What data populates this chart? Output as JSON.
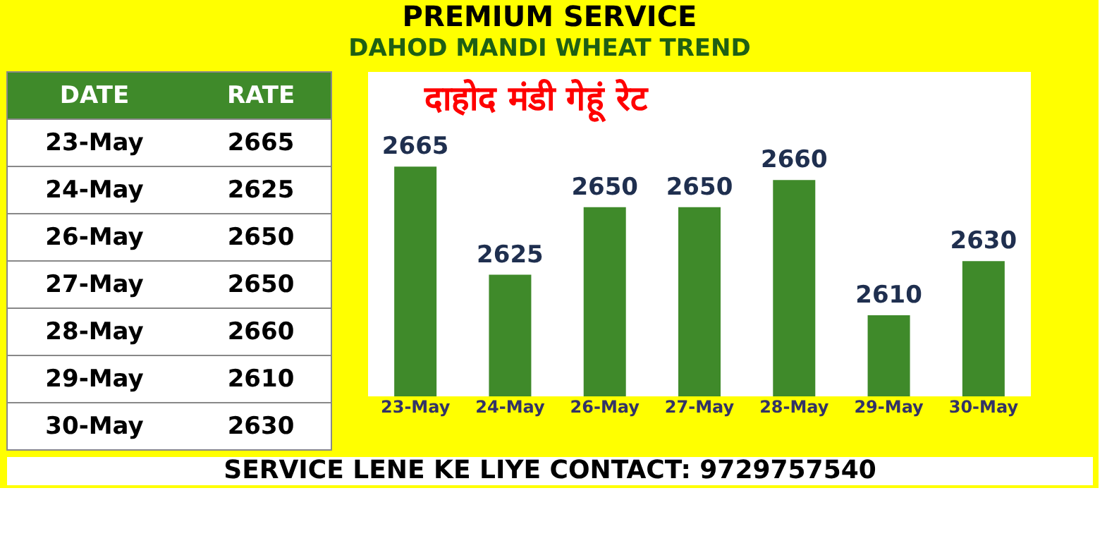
{
  "chart_data": [
    {
      "type": "other",
      "categories": [
        "23-May",
        "24-May",
        "26-May",
        "27-May",
        "28-May",
        "29-May",
        "30-May"
      ],
      "values": [
        2665,
        2625,
        2650,
        2650,
        2660,
        2610,
        2630
      ],
      "data_labels": true,
      "xlabel": "DATE",
      "ylabel": "RATE"
    },
    {
      "type": "bar",
      "title": "PREMIUM SERVICE",
      "subtitle": "DAHOD MANDI WHEAT TREND",
      "categories": [
        "23-May",
        "24-May",
        "26-May",
        "27-May",
        "28-May",
        "29-May",
        "30-May"
      ],
      "values": [
        2665,
        2625,
        2650,
        2650,
        2660,
        2610,
        2630
      ],
      "color": "#3f8a2a",
      "ylim": [
        2580,
        2700
      ],
      "data_labels": true,
      "annotations": [
        "दाहोद मंडी गेहूं रेट",
        "SERVICE LENE KE LIYE CONTACT: 9729757540"
      ]
    }
  ]
}
